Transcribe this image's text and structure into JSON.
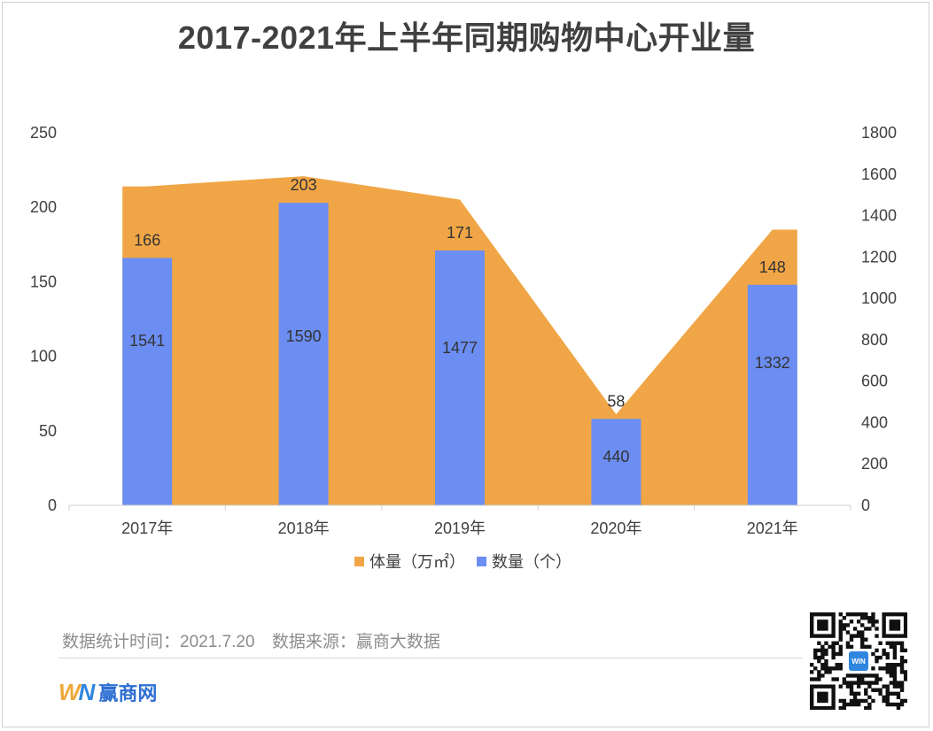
{
  "chart_data": {
    "type": "bar+area",
    "title": "2017-2021年上半年同期购物中心开业量",
    "categories": [
      "2017年",
      "2018年",
      "2019年",
      "2020年",
      "2021年"
    ],
    "y_left": {
      "ticks": [
        "0",
        "50",
        "100",
        "150",
        "200",
        "250"
      ],
      "ylim": [
        0,
        250
      ]
    },
    "y_right": {
      "ticks": [
        "0",
        "200",
        "400",
        "600",
        "800",
        "1000",
        "1200",
        "1400",
        "1600",
        "1800"
      ],
      "ylim": [
        0,
        1800
      ]
    },
    "series": [
      {
        "name": "体量（万㎡）",
        "kind": "area",
        "axis": "right",
        "color": "#f0a646",
        "values": [
          1541,
          1590,
          1477,
          440,
          1332
        ],
        "labels": [
          "1541",
          "1590",
          "1477",
          "440",
          "1332"
        ]
      },
      {
        "name": "数量（个）",
        "kind": "bar",
        "axis": "left",
        "color": "#6c8ef2",
        "values": [
          166,
          203,
          171,
          58,
          148
        ],
        "labels": [
          "166",
          "203",
          "171",
          "58",
          "148"
        ]
      }
    ],
    "legend_position": "bottom",
    "grid": false
  },
  "footer": {
    "stat_time": "数据统计时间：2021.7.20",
    "source": "数据来源：赢商大数据"
  },
  "logo": {
    "mark_w": "W",
    "mark_n": "N",
    "text": "赢商网"
  },
  "qr_badge": "WIN"
}
